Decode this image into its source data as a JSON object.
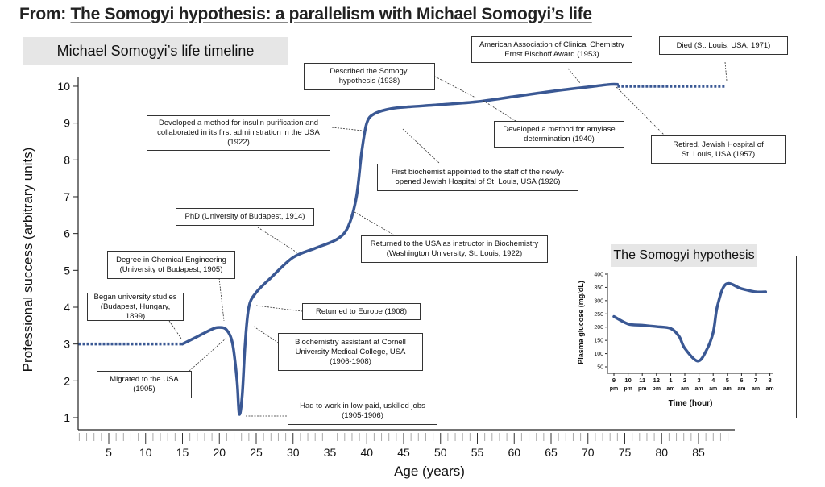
{
  "header": {
    "prefix": "From: ",
    "title": "The Somogyi hypothesis: a parallelism with Michael Somogyi’s life"
  },
  "chart_data": [
    {
      "type": "line",
      "title": "Michael Somogyi’s life timeline",
      "xlabel": "Age (years)",
      "ylabel": "Professional success (arbitrary units)",
      "xlim": [
        0,
        90
      ],
      "ylim": [
        1,
        10
      ],
      "xticks": [
        5,
        10,
        15,
        20,
        25,
        30,
        35,
        40,
        45,
        50,
        55,
        60,
        65,
        70,
        75,
        80,
        85
      ],
      "yticks": [
        1,
        2,
        3,
        4,
        5,
        6,
        7,
        8,
        9,
        10
      ],
      "color": "#3a5894",
      "dotted_before": [
        [
          0.9,
          3.0
        ],
        [
          15,
          3.0
        ]
      ],
      "dotted_after": [
        [
          74,
          10.0
        ],
        [
          88.6,
          10.0
        ]
      ],
      "series": [
        {
          "x": [
            15,
            17,
            19,
            20,
            21,
            21.8,
            22.4,
            22.7,
            23.1,
            23.5,
            24,
            25,
            27,
            30,
            33,
            36,
            37.5,
            38.6,
            39.3,
            40,
            41,
            43,
            45,
            50,
            55,
            60,
            65,
            70,
            73,
            74
          ],
          "y": [
            3.0,
            3.2,
            3.4,
            3.45,
            3.38,
            3.0,
            2.0,
            1.1,
            1.6,
            3.0,
            4.0,
            4.4,
            4.8,
            5.35,
            5.6,
            5.85,
            6.2,
            7.0,
            8.2,
            9.0,
            9.25,
            9.38,
            9.43,
            9.5,
            9.58,
            9.72,
            9.86,
            9.98,
            10.05,
            10.05
          ]
        }
      ],
      "annotations": [
        {
          "text": "Began university studies\n(Budapest, Hungary, 1899)"
        },
        {
          "text": "Degree in Chemical Engineering\n(University of Budapest, 1905)"
        },
        {
          "text": "PhD (University of Budapest, 1914)"
        },
        {
          "text": "Developed a method for insulin purification and\ncollaborated in its first administration in the USA\n(1922)"
        },
        {
          "text": "Described the Somogyi\nhypothesis (1938)"
        },
        {
          "text": "American Association of Clinical Chemistry\nErnst Bischoff Award (1953)"
        },
        {
          "text": "Died (St. Louis, USA, 1971)"
        },
        {
          "text": "Developed a method for amylase\ndetermination (1940)"
        },
        {
          "text": "Retired, Jewish Hospital of\nSt. Louis, USA (1957)"
        },
        {
          "text": "First biochemist appointed to the staff of the newly-\nopened Jewish Hospital of St. Louis, USA (1926)"
        },
        {
          "text": "Returned to the USA as instructor in Biochemistry\n(Washington University, St. Louis, 1922)"
        },
        {
          "text": "Returned to Europe (1908)"
        },
        {
          "text": "Biochemistry assistant at Cornell\nUniversity Medical College, USA\n(1906-1908)"
        },
        {
          "text": "Migrated to the USA\n(1905)"
        },
        {
          "text": "Had to work in low-paid, uskilled jobs\n(1905-1906)"
        }
      ]
    },
    {
      "type": "line",
      "title": "The Somogyi hypothesis",
      "xlabel": "Time (hour)",
      "ylabel": "Plasma glucose (mg/dL)",
      "ylim": [
        50,
        400
      ],
      "yticks": [
        50,
        100,
        150,
        200,
        250,
        300,
        350,
        400
      ],
      "xticks": [
        {
          "h": "9",
          "p": "pm"
        },
        {
          "h": "10",
          "p": "pm"
        },
        {
          "h": "11",
          "p": "pm"
        },
        {
          "h": "12",
          "p": "pm"
        },
        {
          "h": "1",
          "p": "am"
        },
        {
          "h": "2",
          "p": "am"
        },
        {
          "h": "3",
          "p": "am"
        },
        {
          "h": "4",
          "p": "am"
        },
        {
          "h": "5",
          "p": "am"
        },
        {
          "h": "6",
          "p": "am"
        },
        {
          "h": "7",
          "p": "am"
        },
        {
          "h": "8",
          "p": "am"
        }
      ],
      "color": "#3a5894",
      "series": [
        {
          "x": [
            0,
            1,
            2,
            3,
            4,
            4.6,
            5,
            5.9,
            6.5,
            7,
            7.3,
            7.9,
            9,
            10,
            10.7
          ],
          "y": [
            240,
            212,
            207,
            202,
            195,
            165,
            120,
            72,
            110,
            180,
            280,
            362,
            345,
            333,
            333
          ]
        }
      ]
    }
  ]
}
